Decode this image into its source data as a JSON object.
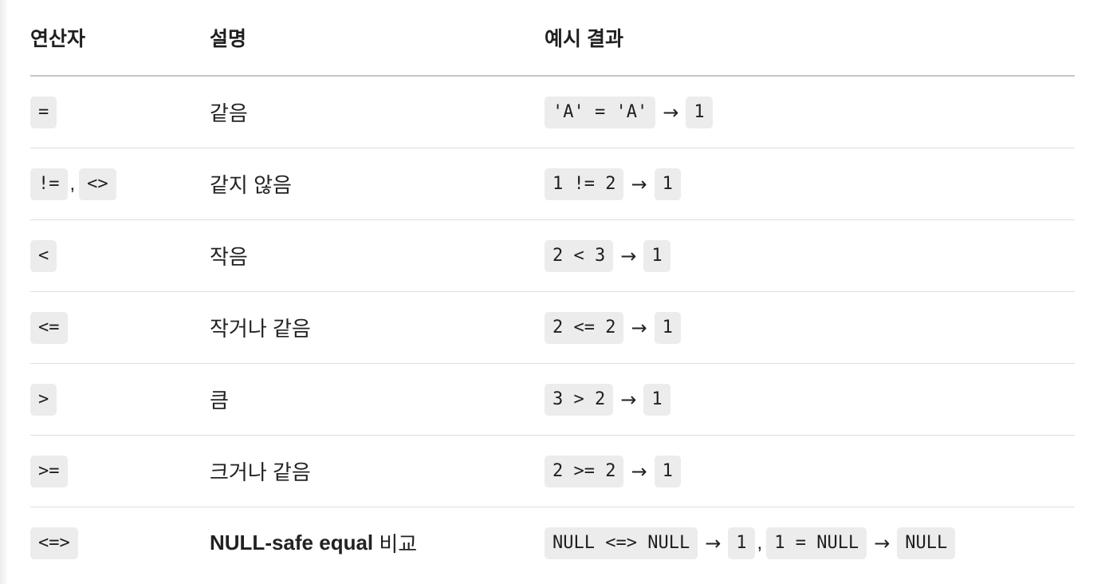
{
  "table": {
    "headers": {
      "operator": "연산자",
      "description": "설명",
      "example": "예시 결과"
    },
    "rows": [
      {
        "operators": [
          "="
        ],
        "description": "같음",
        "example": [
          {
            "code": "'A' = 'A'",
            "result": "1"
          }
        ]
      },
      {
        "operators": [
          "!=",
          "<>"
        ],
        "operator_separator": ",",
        "description": "같지 않음",
        "example": [
          {
            "code": "1 != 2",
            "result": "1"
          }
        ]
      },
      {
        "operators": [
          "<"
        ],
        "description": "작음",
        "example": [
          {
            "code": "2 < 3",
            "result": "1"
          }
        ]
      },
      {
        "operators": [
          "<="
        ],
        "description": "작거나 같음",
        "example": [
          {
            "code": "2 <= 2",
            "result": "1"
          }
        ]
      },
      {
        "operators": [
          ">"
        ],
        "description": "큼",
        "example": [
          {
            "code": "3 > 2",
            "result": "1"
          }
        ]
      },
      {
        "operators": [
          ">="
        ],
        "description": "크거나 같음",
        "example": [
          {
            "code": "2 >= 2",
            "result": "1"
          }
        ]
      },
      {
        "operators": [
          "<=>"
        ],
        "description_bold": "NULL-safe equal",
        "description": " 비교",
        "example": [
          {
            "code": "NULL <=> NULL",
            "result": "1"
          },
          {
            "code": "1 = NULL",
            "result": "NULL"
          }
        ],
        "example_separator": ","
      }
    ],
    "arrow_glyph": "→"
  },
  "colors": {
    "code_background": "#ececec",
    "header_rule": "#c4c4c4",
    "row_rule": "#dedede",
    "text": "#1f1f1f"
  }
}
